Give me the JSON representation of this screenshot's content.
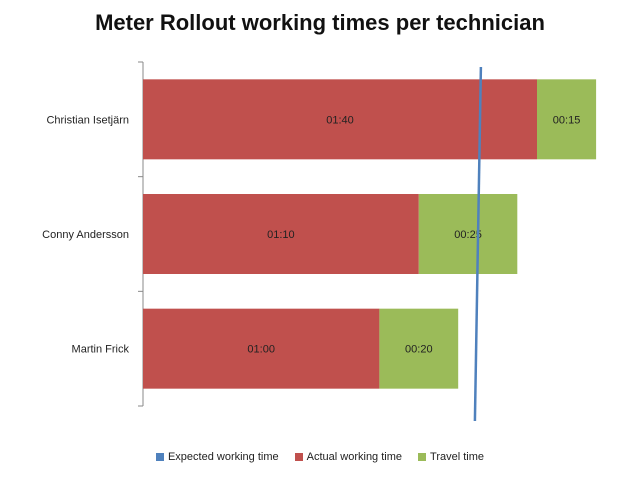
{
  "chart_data": {
    "type": "bar",
    "orientation": "horizontal",
    "stacked": true,
    "title": "Meter Rollout working times per technician",
    "categories": [
      "Christian Isetjärn",
      "Conny Andersson",
      "Martin Frick"
    ],
    "series": [
      {
        "name": "Actual working time",
        "color": "#c0504d",
        "values": [
          100,
          70,
          60
        ],
        "labels": [
          "01:40",
          "01:10",
          "01:00"
        ]
      },
      {
        "name": "Travel time",
        "color": "#9bbb59",
        "values": [
          15,
          25,
          20
        ],
        "labels": [
          "00:15",
          "00:25",
          "00:20"
        ]
      }
    ],
    "reference_line": {
      "name": "Expected working time",
      "color": "#4f81bd",
      "value": 85
    },
    "value_unit": "minutes",
    "xlim": [
      0,
      115
    ],
    "grid": false,
    "legend_position": "bottom"
  }
}
